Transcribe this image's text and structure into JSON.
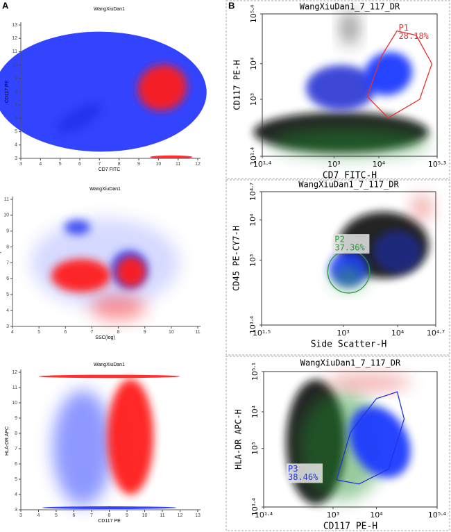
{
  "panel_labels": [
    "A",
    "B"
  ],
  "chart_data": [
    {
      "type": "scatter",
      "title": "WangXiuDan1",
      "x_label": "CD7 FITC",
      "y_label": "CD117 PE",
      "xlim": [
        3,
        12
      ],
      "ylim": [
        3,
        13
      ],
      "xticks": [
        3,
        4,
        5,
        6,
        7,
        8,
        9,
        10,
        11,
        12
      ],
      "yticks": [
        3,
        4,
        5,
        6,
        7,
        8,
        9,
        10,
        11,
        12,
        13
      ],
      "log": false,
      "frame": false
    },
    {
      "type": "scatter",
      "title": "WangXiuDan1",
      "x_label": "SSC(log)",
      "y_label": "CD45 PE-cy7",
      "xlim": [
        4,
        11
      ],
      "ylim": [
        3,
        11
      ],
      "xticks": [
        4,
        5,
        6,
        7,
        8,
        9,
        10,
        11
      ],
      "yticks": [
        3,
        4,
        5,
        6,
        7,
        8,
        9,
        10,
        11
      ],
      "log": false,
      "frame": false
    },
    {
      "type": "scatter",
      "title": "WangXiuDan1",
      "x_label": "CD117 PE",
      "y_label": "HLA-DR APC",
      "xlim": [
        3,
        13
      ],
      "ylim": [
        3,
        12
      ],
      "xticks": [
        3,
        4,
        5,
        6,
        7,
        8,
        9,
        10,
        11,
        12,
        13
      ],
      "yticks": [
        3,
        4,
        5,
        6,
        7,
        8,
        9,
        10,
        11,
        12
      ],
      "log": false,
      "frame": false
    },
    {
      "type": "scatter",
      "title": "WangXiuDan1_7_117_DR",
      "x_label": "CD7 FITC-H",
      "y_label": "CD117 PE-H",
      "log": true,
      "frame": true,
      "xlim": [
        25.12,
        199526
      ],
      "ylim": [
        25.12,
        251189
      ],
      "xticks": [
        {
          "value": 25.12,
          "label": "10¹·⁴"
        },
        {
          "value": 1000,
          "label": "10³"
        },
        {
          "value": 10000,
          "label": "10⁴"
        },
        {
          "value": 199526,
          "label": "10⁵·³"
        }
      ],
      "yticks": [
        {
          "value": 25.12,
          "label": "10¹·⁴"
        },
        {
          "value": 1000,
          "label": "10³"
        },
        {
          "value": 10000,
          "label": "10⁴"
        },
        {
          "value": 251189,
          "label": "10⁵·⁴"
        }
      ],
      "gates": [
        {
          "name": "P1",
          "value": 28.18,
          "value_label": "28.18%",
          "color": "#e8302a",
          "label_box": false
        }
      ]
    },
    {
      "type": "scatter",
      "title": "WangXiuDan1_7_117_DR",
      "x_label": "Side Scatter-H",
      "y_label": "CD45 PE-CY7-H",
      "log": true,
      "frame": true,
      "xlim": [
        31.62,
        50119
      ],
      "ylim": [
        25.12,
        50119
      ],
      "xticks": [
        {
          "value": 31.62,
          "label": "10¹·⁵"
        },
        {
          "value": 1000,
          "label": "10³"
        },
        {
          "value": 10000,
          "label": "10⁴"
        },
        {
          "value": 50119,
          "label": "10⁴·⁷"
        }
      ],
      "yticks": [
        {
          "value": 25.12,
          "label": "10¹·⁴"
        },
        {
          "value": 1000,
          "label": "10³"
        },
        {
          "value": 10000,
          "label": "10⁴"
        },
        {
          "value": 50119,
          "label": "10⁴·⁷"
        }
      ],
      "gates": [
        {
          "name": "P2",
          "value": 37.36,
          "value_label": "37.36%",
          "color": "#2a9a3a",
          "label_box": true
        }
      ]
    },
    {
      "type": "scatter",
      "title": "WangXiuDan1_7_117_DR",
      "x_label": "CD117 PE-H",
      "y_label": "HLA-DR APC-H",
      "log": true,
      "frame": true,
      "xlim": [
        25.12,
        251189
      ],
      "ylim": [
        25.12,
        125893
      ],
      "xticks": [
        {
          "value": 25.12,
          "label": "10¹·⁴"
        },
        {
          "value": 1000,
          "label": "10³"
        },
        {
          "value": 10000,
          "label": "10⁴"
        },
        {
          "value": 251189,
          "label": "10⁵·⁴"
        }
      ],
      "yticks": [
        {
          "value": 25.12,
          "label": "10¹·⁴"
        },
        {
          "value": 1000,
          "label": "10³"
        },
        {
          "value": 10000,
          "label": "10⁴"
        },
        {
          "value": 125893,
          "label": "10⁵·¹"
        }
      ],
      "gates": [
        {
          "name": "P3",
          "value": 38.46,
          "value_label": "38.46%",
          "color": "#2233dd",
          "label_box": true
        }
      ]
    }
  ]
}
